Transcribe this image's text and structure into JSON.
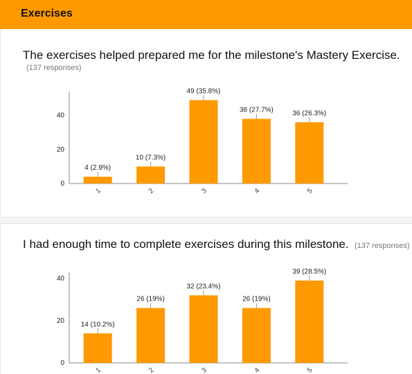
{
  "section": {
    "title": "Exercises"
  },
  "questions": [
    {
      "title": "The exercises helped prepared me for the milestone's Mastery Exercise.",
      "responses": "(137 responses)"
    },
    {
      "title": "I had enough time to complete exercises during this milestone.",
      "responses": "(137 responses)"
    }
  ],
  "colors": {
    "accent": "#ff9900",
    "axis": "#888888"
  },
  "chart_data": [
    {
      "type": "bar",
      "categories": [
        "1",
        "2",
        "3",
        "4",
        "5"
      ],
      "values": [
        4,
        10,
        49,
        38,
        36
      ],
      "data_labels": [
        "4 (2.9%)",
        "10 (7.3%)",
        "49 (35.8%)",
        "38 (27.7%)",
        "36 (26.3%)"
      ],
      "yticks": [
        "0",
        "20",
        "40"
      ],
      "ylim": [
        0,
        48
      ],
      "grid": false
    },
    {
      "type": "bar",
      "categories": [
        "1",
        "2",
        "3",
        "4",
        "5"
      ],
      "values": [
        14,
        26,
        32,
        26,
        39
      ],
      "data_labels": [
        "14 (10.2%)",
        "26 (19%)",
        "32 (23.4%)",
        "26 (19%)",
        "39 (28.5%)"
      ],
      "yticks": [
        "0",
        "20",
        "40"
      ],
      "ylim": [
        0,
        40
      ],
      "grid": false
    }
  ]
}
